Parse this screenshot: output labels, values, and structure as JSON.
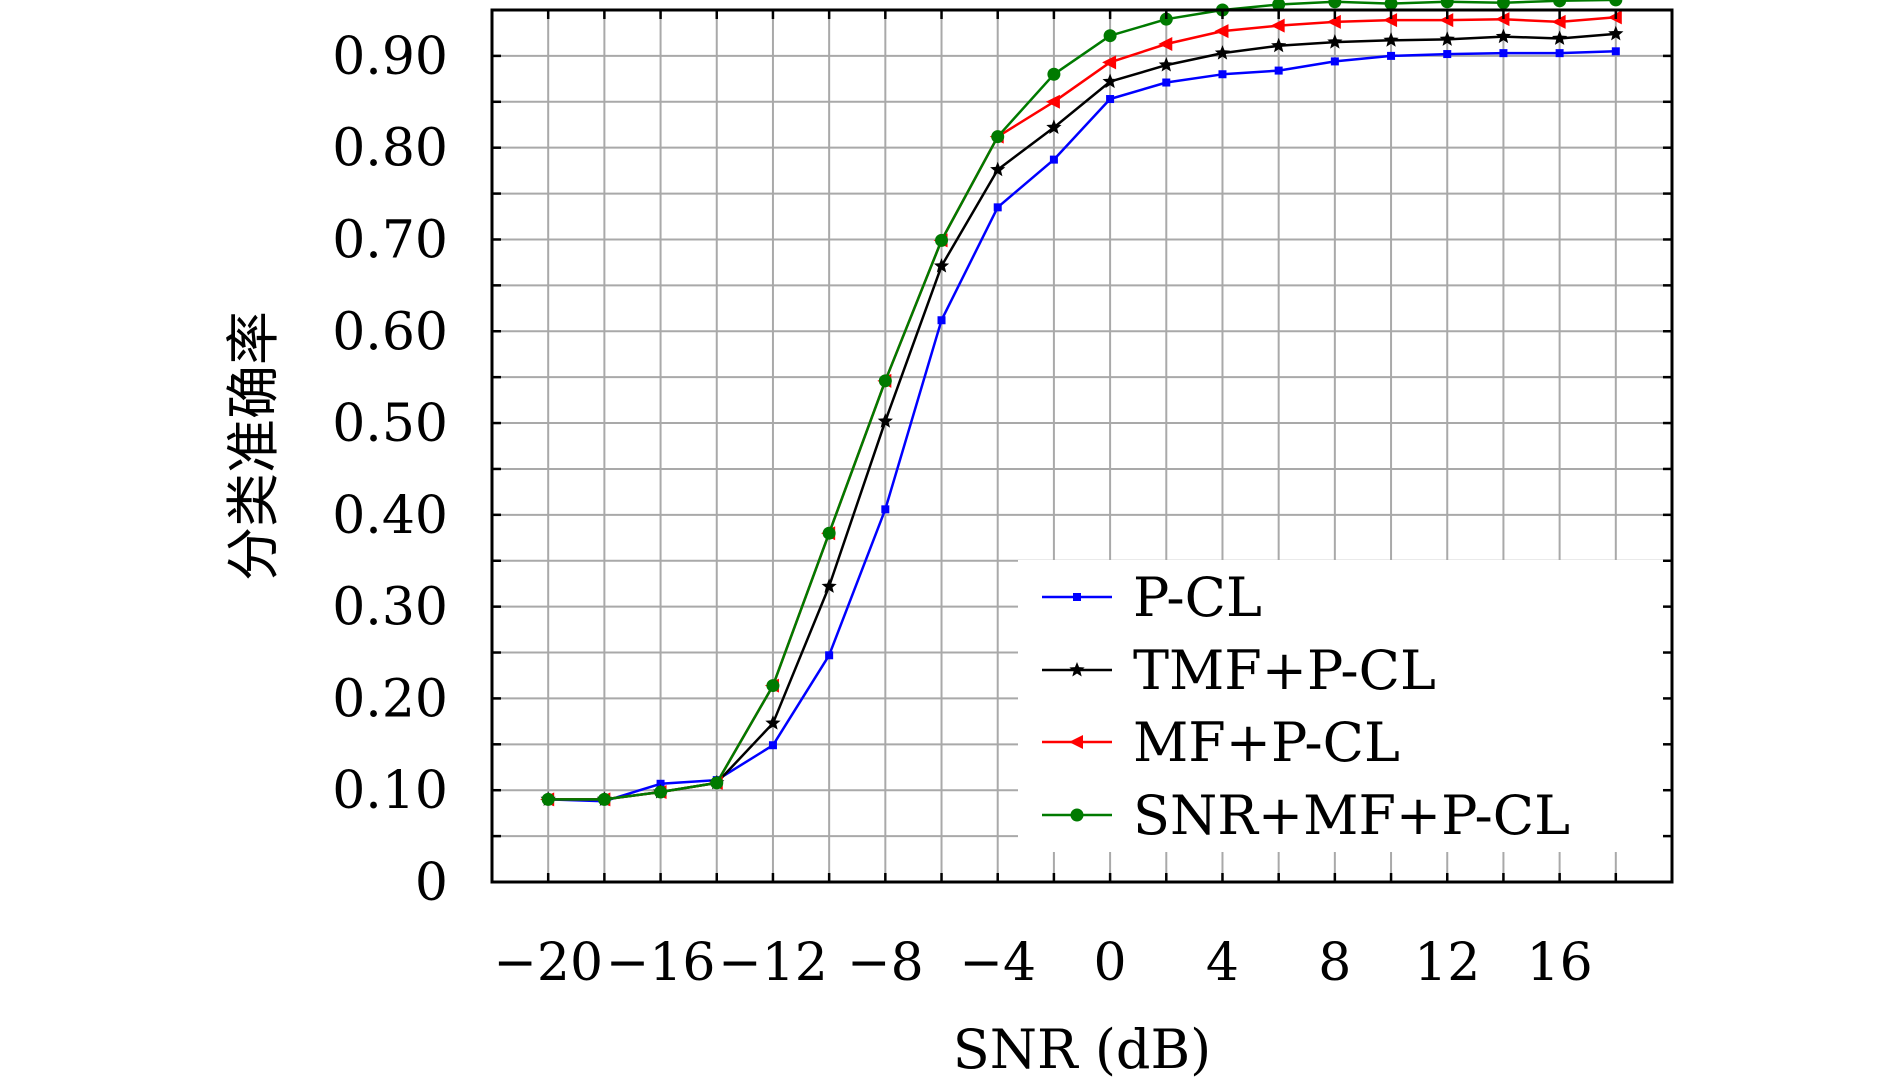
{
  "chart_data": {
    "type": "line",
    "title": "",
    "xlabel": "SNR (dB)",
    "ylabel": "分类准确率",
    "xlim": [
      -22,
      20
    ],
    "ylim": [
      0,
      0.95
    ],
    "x_ticks": [
      -20,
      -16,
      -12,
      -8,
      -4,
      0,
      4,
      8,
      12,
      16
    ],
    "x_tick_labels": [
      "−20",
      "−16",
      "−12",
      "−8",
      "−4",
      "0",
      "4",
      "8",
      "12",
      "16"
    ],
    "y_ticks": [
      0,
      0.1,
      0.2,
      0.3,
      0.4,
      0.5,
      0.6,
      0.7,
      0.8,
      0.9
    ],
    "y_tick_labels": [
      "0",
      "0.10",
      "0.20",
      "0.30",
      "0.40",
      "0.50",
      "0.60",
      "0.70",
      "0.80",
      "0.90"
    ],
    "grid": true,
    "legend_position": "bottom-right",
    "x": [
      -20,
      -18,
      -16,
      -14,
      -12,
      -10,
      -8,
      -6,
      -4,
      -2,
      0,
      2,
      4,
      6,
      8,
      10,
      12,
      14,
      16,
      18
    ],
    "series": [
      {
        "name": "P-CL",
        "color": "#0000ff",
        "marker": "square",
        "values": [
          0.09,
          0.088,
          0.107,
          0.111,
          0.149,
          0.247,
          0.406,
          0.612,
          0.735,
          0.787,
          0.853,
          0.871,
          0.88,
          0.884,
          0.894,
          0.9,
          0.902,
          0.903,
          0.903,
          0.905
        ]
      },
      {
        "name": "TMF+P-CL",
        "color": "#000000",
        "marker": "star",
        "values": [
          0.09,
          0.09,
          0.098,
          0.108,
          0.173,
          0.322,
          0.502,
          0.671,
          0.776,
          0.822,
          0.872,
          0.89,
          0.903,
          0.911,
          0.915,
          0.917,
          0.918,
          0.921,
          0.919,
          0.924
        ]
      },
      {
        "name": "MF+P-CL",
        "color": "#ff0000",
        "marker": "triangle-left",
        "values": [
          0.09,
          0.09,
          0.098,
          0.108,
          0.214,
          0.38,
          0.546,
          0.699,
          0.812,
          0.85,
          0.893,
          0.913,
          0.927,
          0.933,
          0.937,
          0.939,
          0.939,
          0.94,
          0.937,
          0.942
        ]
      },
      {
        "name": "SNR+MF+P-CL",
        "color": "#007a00",
        "marker": "circle",
        "values": [
          0.09,
          0.09,
          0.098,
          0.108,
          0.214,
          0.38,
          0.546,
          0.699,
          0.812,
          0.88,
          0.922,
          0.94,
          0.95,
          0.956,
          0.959,
          0.957,
          0.959,
          0.958,
          0.96,
          0.961
        ]
      }
    ]
  }
}
